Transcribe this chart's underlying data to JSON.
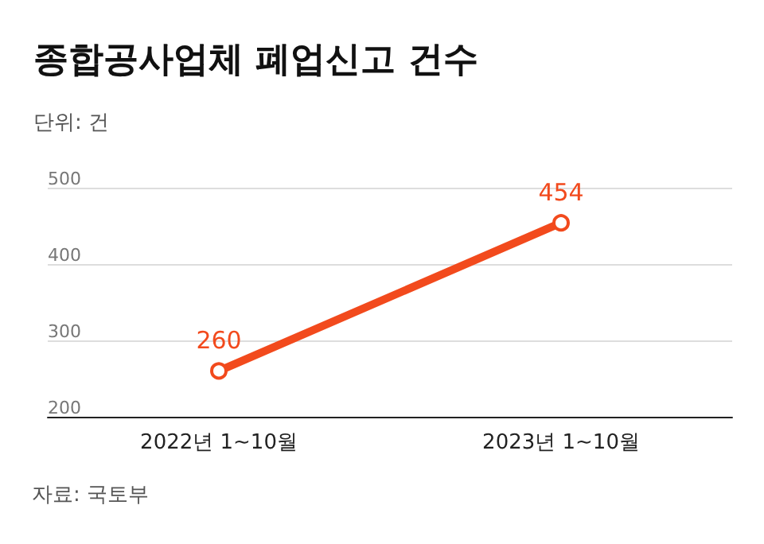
{
  "chart_data": {
    "type": "line",
    "title": "종합공사업체 폐업신고 건수",
    "subtitle": "단위: 건",
    "annotations": [
      "자료: 국토부"
    ],
    "categories": [
      "2022년 1~10월",
      "2023년 1~10월"
    ],
    "series": [
      {
        "color": "#f24a1d",
        "values": [
          260,
          454
        ]
      }
    ],
    "ylim": [
      200,
      500
    ],
    "yticks": [
      200,
      300,
      400,
      500
    ],
    "grid": "y",
    "marker": "circle",
    "line_style": "solid",
    "data_labels": true
  }
}
